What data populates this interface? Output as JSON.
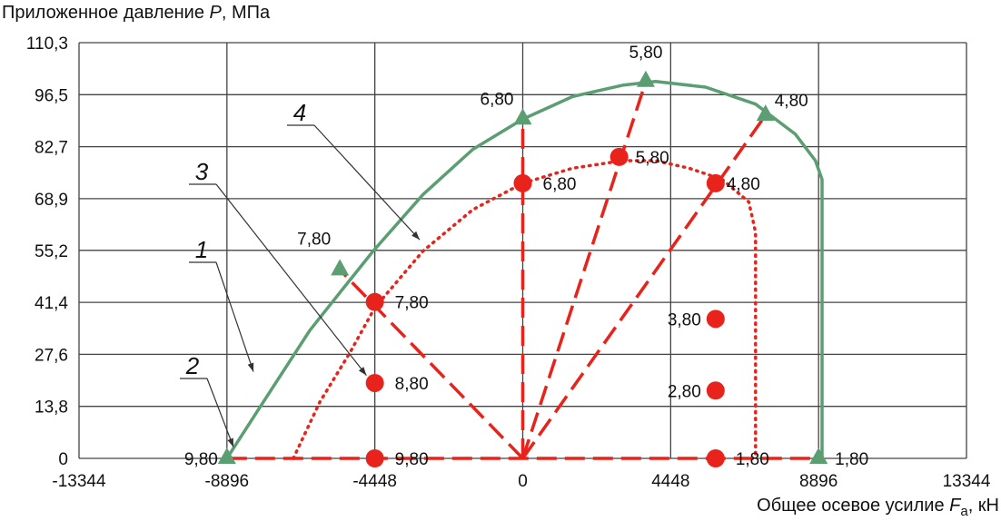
{
  "chart_data": {
    "type": "line",
    "ylabel_prefix": "Приложенное давление ",
    "ylabel_var": "P",
    "ylabel_suffix": ", МПа",
    "xlabel_prefix": "Общее осевое усилие ",
    "xlabel_var": "F",
    "xlabel_sub": "a",
    "xlabel_suffix": ", кН",
    "xlim": [
      -13344,
      13344
    ],
    "ylim": [
      0,
      110.3
    ],
    "x_ticks": [
      -13344,
      -8896,
      -4448,
      0,
      4448,
      8896,
      13344
    ],
    "x_tick_labels": [
      "-13344",
      "-8896",
      "-4448",
      "0",
      "4448",
      "8896",
      "13344"
    ],
    "y_ticks": [
      0,
      13.8,
      27.6,
      41.4,
      55.2,
      68.9,
      82.7,
      96.5,
      110.3
    ],
    "y_tick_labels": [
      "0",
      "13,8",
      "27,6",
      "41,4",
      "55,2",
      "68,9",
      "82,7",
      "96,5",
      "110,3"
    ],
    "grid": true,
    "colors": {
      "green": "#5a9e72",
      "red": "#e8231b",
      "grid": "#444444"
    },
    "green_envelope": [
      [
        -8896,
        0
      ],
      [
        -7800,
        15
      ],
      [
        -6400,
        34
      ],
      [
        -5500,
        44
      ],
      [
        -4500,
        55
      ],
      [
        -3000,
        70
      ],
      [
        -1500,
        82
      ],
      [
        0,
        90
      ],
      [
        1500,
        96
      ],
      [
        3000,
        99
      ],
      [
        4000,
        100
      ],
      [
        5500,
        98.5
      ],
      [
        7000,
        94
      ],
      [
        8200,
        86
      ],
      [
        8800,
        79
      ],
      [
        9000,
        74
      ],
      [
        9000,
        0
      ]
    ],
    "red_envelope": [
      [
        -6900,
        0
      ],
      [
        -6100,
        15
      ],
      [
        -5200,
        28
      ],
      [
        -4448,
        40
      ],
      [
        -3000,
        55
      ],
      [
        -1500,
        66
      ],
      [
        0,
        73
      ],
      [
        1500,
        77
      ],
      [
        3000,
        79
      ],
      [
        4000,
        79
      ],
      [
        5000,
        77
      ],
      [
        6000,
        74
      ],
      [
        6800,
        68
      ],
      [
        7000,
        60
      ],
      [
        7000,
        0
      ]
    ],
    "dashed_lines": [
      [
        [
          0,
          0
        ],
        [
          0,
          90
        ]
      ],
      [
        [
          0,
          0
        ],
        [
          3700,
          100
        ]
      ],
      [
        [
          0,
          0
        ],
        [
          7300,
          91
        ]
      ],
      [
        [
          0,
          0
        ],
        [
          -5500,
          50
        ]
      ],
      [
        [
          -8896,
          0
        ],
        [
          9000,
          0
        ]
      ]
    ],
    "green_markers": [
      {
        "x": -8896,
        "y": 0,
        "label": "9,80",
        "anchor": "end",
        "dx": -10,
        "dy": 7
      },
      {
        "x": -5500,
        "y": 50,
        "label": "7,80",
        "anchor": "end",
        "dx": -10,
        "dy": -28
      },
      {
        "x": 0,
        "y": 90,
        "label": "6,80",
        "anchor": "end",
        "dx": -10,
        "dy": -16
      },
      {
        "x": 3700,
        "y": 100,
        "label": "5,80",
        "anchor": "middle",
        "dx": 0,
        "dy": -26
      },
      {
        "x": 7300,
        "y": 91,
        "label": "4,80",
        "anchor": "start",
        "dx": 10,
        "dy": -10
      },
      {
        "x": 8896,
        "y": 0,
        "label": "1,80",
        "anchor": "start",
        "dx": 18,
        "dy": 7
      }
    ],
    "red_markers": [
      {
        "x": -4448,
        "y": 0,
        "label": "9,80",
        "anchor": "start",
        "dx": 22,
        "dy": 7
      },
      {
        "x": -4448,
        "y": 20,
        "label": "8,80",
        "anchor": "start",
        "dx": 22,
        "dy": 7
      },
      {
        "x": -4448,
        "y": 41.5,
        "label": "7,80",
        "anchor": "start",
        "dx": 22,
        "dy": 7
      },
      {
        "x": 0,
        "y": 73,
        "label": "6,80",
        "anchor": "start",
        "dx": 22,
        "dy": 7
      },
      {
        "x": 2900,
        "y": 80,
        "label": "5,80",
        "anchor": "start",
        "dx": 18,
        "dy": 7
      },
      {
        "x": 5800,
        "y": 73,
        "label": "4,80",
        "anchor": "start",
        "dx": 12,
        "dy": 7
      },
      {
        "x": 5800,
        "y": 37,
        "label": "3,80",
        "anchor": "end",
        "dx": -16,
        "dy": 7
      },
      {
        "x": 5800,
        "y": 18,
        "label": "2,80",
        "anchor": "end",
        "dx": -16,
        "dy": 7
      },
      {
        "x": 5800,
        "y": 0,
        "label": "1,80",
        "anchor": "start",
        "dx": 22,
        "dy": 7
      }
    ],
    "callouts": [
      {
        "label": "1",
        "to": [
          -8100,
          23
        ]
      },
      {
        "label": "2",
        "to": [
          -8700,
          3
        ]
      },
      {
        "label": "3",
        "to": [
          -4700,
          22
        ]
      },
      {
        "label": "4",
        "to": [
          -3100,
          58
        ]
      }
    ]
  }
}
